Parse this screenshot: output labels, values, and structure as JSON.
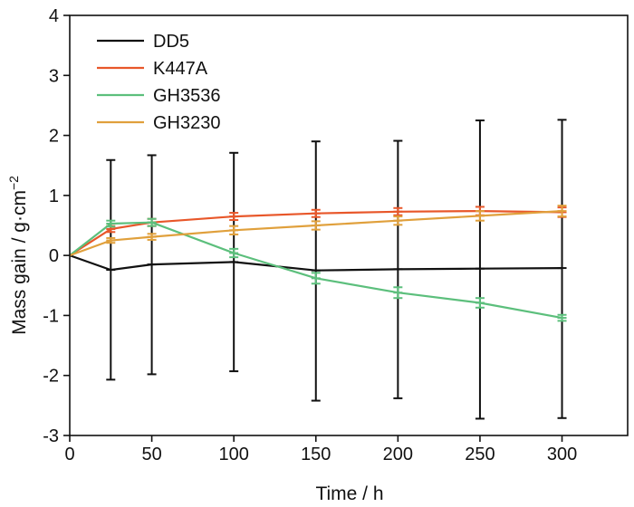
{
  "chart_data": {
    "type": "line",
    "title": "",
    "xlabel": "Time / h",
    "ylabel": "Mass gain / g·cm",
    "ylabel_sup": "−2",
    "xlim": [
      0,
      340
    ],
    "ylim": [
      -3,
      4
    ],
    "xticks": [
      0,
      50,
      100,
      150,
      200,
      250,
      300
    ],
    "yticks": [
      -3,
      -2,
      -1,
      0,
      1,
      2,
      3,
      4
    ],
    "xtick_labels": [
      "0",
      "50",
      "100",
      "150",
      "200",
      "250",
      "300"
    ],
    "ytick_labels": [
      "-3",
      "-2",
      "-1",
      "0",
      "1",
      "2",
      "3",
      "4"
    ],
    "grid": false,
    "legend_position": "top-left",
    "x": [
      0,
      25,
      50,
      100,
      150,
      200,
      250,
      300
    ],
    "series": [
      {
        "name": "DD5",
        "color": "#111111",
        "values": [
          0,
          -0.24,
          -0.15,
          -0.11,
          -0.25,
          -0.23,
          -0.22,
          -0.21
        ],
        "error_low": [
          null,
          -2.07,
          -1.98,
          -1.93,
          -2.42,
          -2.38,
          -2.72,
          -2.71
        ],
        "error_high": [
          null,
          1.59,
          1.67,
          1.71,
          1.9,
          1.91,
          2.25,
          2.26
        ]
      },
      {
        "name": "K447A",
        "color": "#e8572a",
        "values": [
          0,
          0.44,
          0.55,
          0.65,
          0.7,
          0.73,
          0.74,
          0.72
        ],
        "error_low": [
          null,
          0.39,
          0.49,
          0.59,
          0.64,
          0.67,
          0.67,
          0.64
        ],
        "error_high": [
          null,
          0.49,
          0.61,
          0.71,
          0.76,
          0.79,
          0.81,
          0.8
        ]
      },
      {
        "name": "GH3536",
        "color": "#5cbf7c",
        "values": [
          0,
          0.53,
          0.55,
          0.04,
          -0.38,
          -0.62,
          -0.79,
          -1.04
        ],
        "error_low": [
          null,
          0.48,
          0.49,
          -0.03,
          -0.47,
          -0.71,
          -0.87,
          -1.09
        ],
        "error_high": [
          null,
          0.58,
          0.61,
          0.11,
          -0.29,
          -0.53,
          -0.71,
          -0.99
        ]
      },
      {
        "name": "GH3230",
        "color": "#e0a03c",
        "values": [
          0,
          0.25,
          0.31,
          0.42,
          0.5,
          0.58,
          0.66,
          0.74
        ],
        "error_low": [
          null,
          0.21,
          0.26,
          0.35,
          0.43,
          0.51,
          0.58,
          0.65
        ],
        "error_high": [
          null,
          0.29,
          0.36,
          0.49,
          0.57,
          0.65,
          0.74,
          0.83
        ]
      }
    ]
  }
}
